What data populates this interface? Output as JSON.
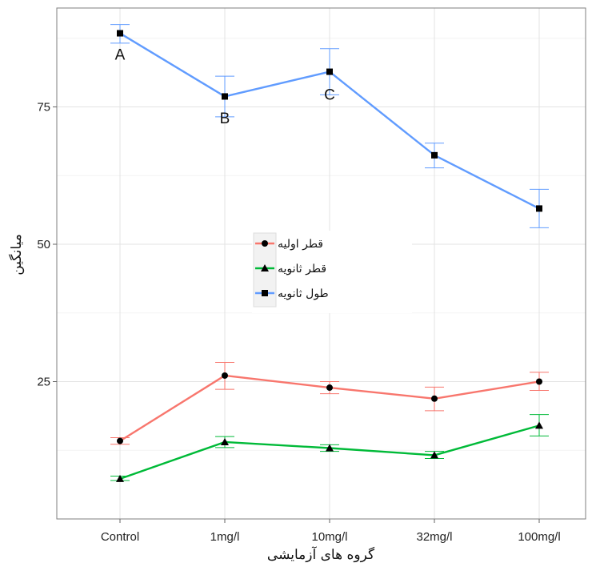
{
  "chart_data": {
    "type": "line",
    "title": "",
    "xlabel": "گروه های آزمایشی",
    "ylabel": "میانگین",
    "categories": [
      "Control",
      "1mg/l",
      "10mg/l",
      "32mg/l",
      "100mg/l"
    ],
    "ylim": [
      0,
      93
    ],
    "yticks": [
      25,
      50,
      75
    ],
    "grid": true,
    "legend_position": "center-left",
    "series": [
      {
        "name": "قطر اولیه",
        "color": "#F8766D",
        "marker": "circle",
        "values": [
          14.2,
          26.1,
          23.9,
          21.9,
          25.0
        ],
        "err_low": [
          13.6,
          23.6,
          22.8,
          19.7,
          23.4
        ],
        "err_high": [
          14.8,
          28.5,
          25.0,
          24.0,
          26.7
        ]
      },
      {
        "name": "قطر ثانویه",
        "color": "#00BA38",
        "marker": "triangle",
        "values": [
          7.3,
          14.0,
          12.9,
          11.6,
          17.0
        ],
        "err_low": [
          7.0,
          13.0,
          12.3,
          11.0,
          15.1
        ],
        "err_high": [
          7.8,
          15.0,
          13.5,
          12.3,
          19.0
        ]
      },
      {
        "name": "طول ثانویه",
        "color": "#619CFF",
        "marker": "square",
        "values": [
          88.4,
          76.9,
          81.4,
          66.2,
          56.5
        ],
        "err_low": [
          86.6,
          73.2,
          77.2,
          63.9,
          53.0
        ],
        "err_high": [
          90.0,
          80.6,
          85.6,
          68.4,
          60.0
        ]
      }
    ],
    "annotations": [
      {
        "text": "A",
        "category": "Control",
        "y": 84.6
      },
      {
        "text": "B",
        "category": "1mg/l",
        "y": 73.0
      },
      {
        "text": "C",
        "category": "10mg/l",
        "y": 77.3
      }
    ]
  }
}
